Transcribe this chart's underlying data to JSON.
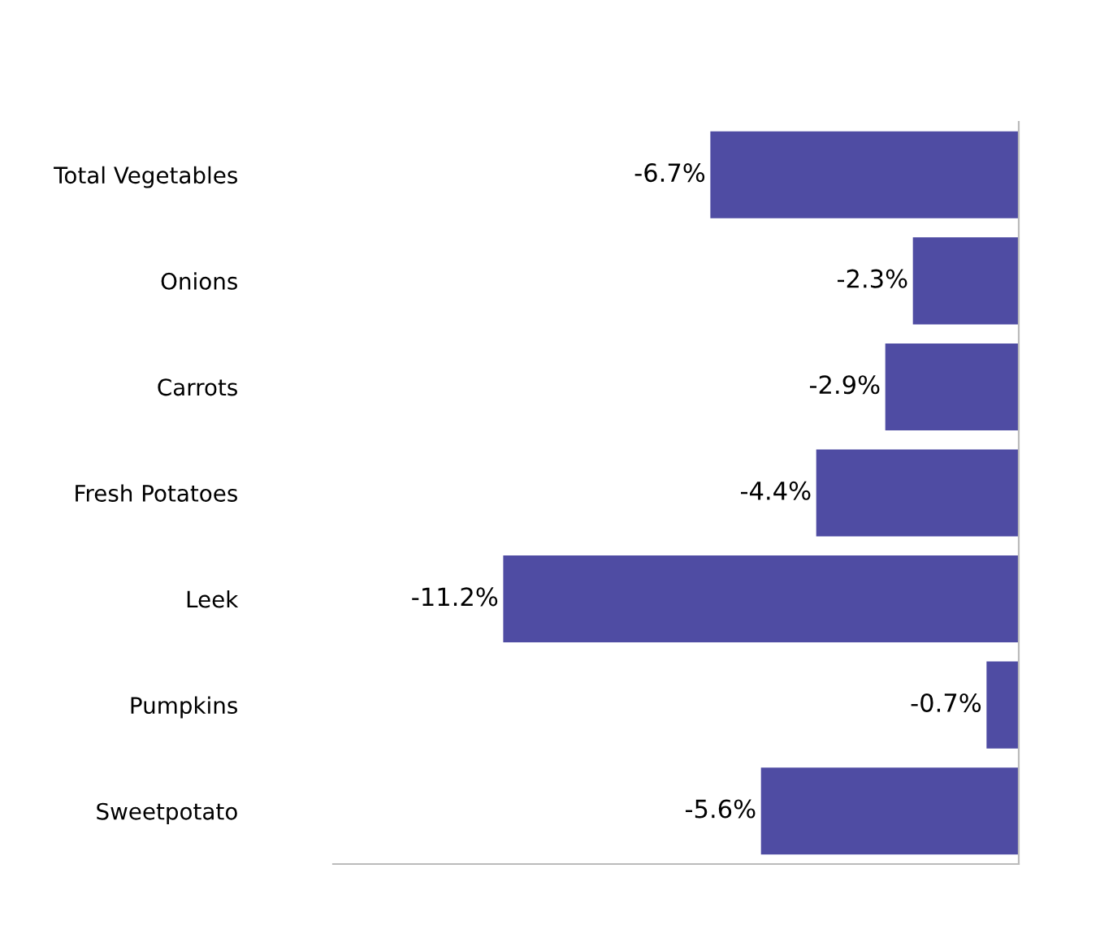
{
  "chart_data": {
    "type": "bar",
    "orientation": "horizontal",
    "categories": [
      "Total Vegetables",
      "Onions",
      "Carrots",
      "Fresh Potatoes",
      "Leek",
      "Pumpkins",
      "Sweetpotato"
    ],
    "values": [
      -6.7,
      -2.3,
      -2.9,
      -4.4,
      -11.2,
      -0.7,
      -5.6
    ],
    "value_labels": [
      "-6.7%",
      "-2.3%",
      "-2.9%",
      "-4.4%",
      "-11.2%",
      "-0.7%",
      "-5.6%"
    ],
    "color": "#4f4ca3"
  }
}
